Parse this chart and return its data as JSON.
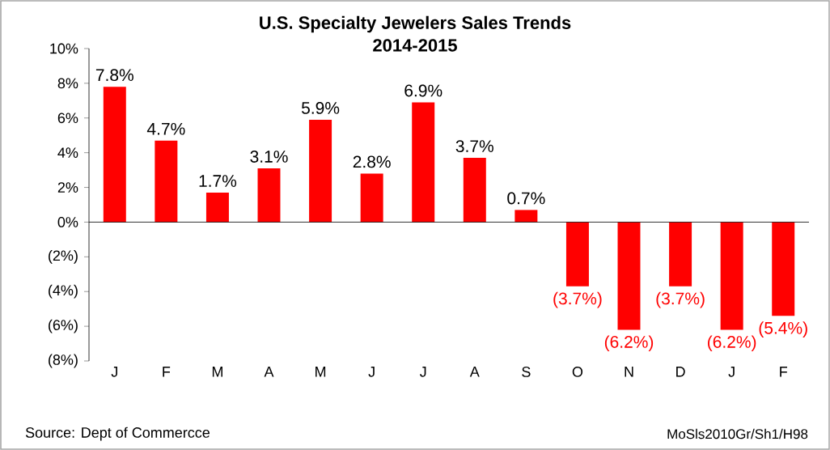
{
  "chart_data": {
    "type": "bar",
    "title": "U.S. Specialty Jewelers Sales Trends",
    "subtitle": "2014-2015",
    "categories": [
      "J",
      "F",
      "M",
      "A",
      "M",
      "J",
      "J",
      "A",
      "S",
      "O",
      "N",
      "D",
      "J",
      "F"
    ],
    "values": [
      7.8,
      4.7,
      1.7,
      3.1,
      5.9,
      2.8,
      6.9,
      3.7,
      0.7,
      -3.7,
      -6.2,
      -3.7,
      -6.2,
      -5.4
    ],
    "value_labels": [
      "7.8%",
      "4.7%",
      "1.7%",
      "3.1%",
      "5.9%",
      "2.8%",
      "6.9%",
      "3.7%",
      "0.7%",
      "(3.7%)",
      "(6.2%)",
      "(3.7%)",
      "(6.2%)",
      "(5.4%)"
    ],
    "color": "#ff0000",
    "ylim": [
      -8,
      10
    ],
    "yticks": [
      {
        "value": -8,
        "label": "(8%)"
      },
      {
        "value": -6,
        "label": "(6%)"
      },
      {
        "value": -4,
        "label": "(4%)"
      },
      {
        "value": -2,
        "label": "(2%)"
      },
      {
        "value": 0,
        "label": "0%"
      },
      {
        "value": 2,
        "label": "2%"
      },
      {
        "value": 4,
        "label": "4%"
      },
      {
        "value": 6,
        "label": "6%"
      },
      {
        "value": 8,
        "label": "8%"
      },
      {
        "value": 10,
        "label": "10%"
      }
    ],
    "annotations": [
      "Source:  Dept of Commercce",
      "MoSls2010Gr/Sh1/H98"
    ]
  }
}
